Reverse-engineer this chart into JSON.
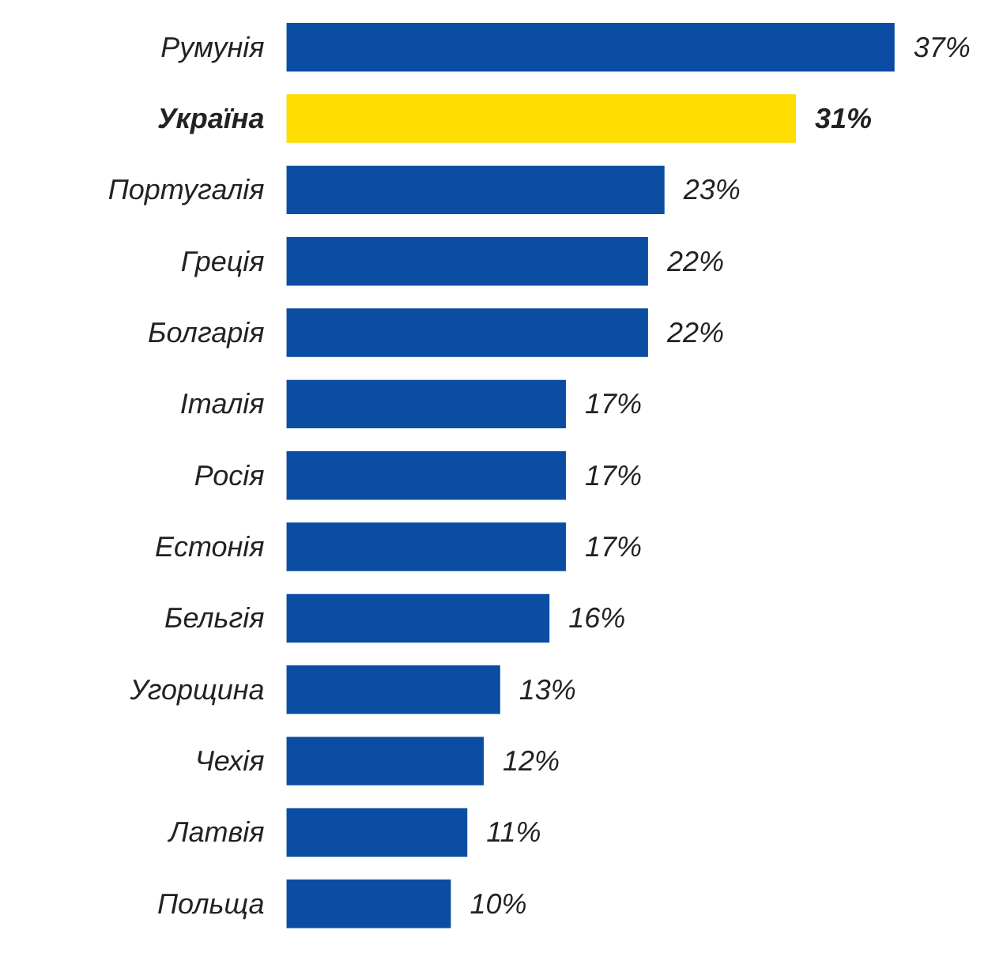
{
  "chart_data": {
    "type": "bar",
    "orientation": "horizontal",
    "categories": [
      "Румунія",
      "Україна",
      "Португалія",
      "Греція",
      "Болгарія",
      "Італія",
      "Росія",
      "Естонія",
      "Бельгія",
      "Угорщина",
      "Чехія",
      "Латвія",
      "Польща"
    ],
    "values": [
      37,
      31,
      23,
      22,
      22,
      17,
      17,
      17,
      16,
      13,
      12,
      11,
      10
    ],
    "colors": [
      "#0a4da2",
      "#ffdd00",
      "#0a4da2",
      "#0a4da2",
      "#0a4da2",
      "#0a4da2",
      "#0a4da2",
      "#0a4da2",
      "#0a4da2",
      "#0a4da2",
      "#0a4da2",
      "#0a4da2",
      "#0a4da2"
    ],
    "value_labels": [
      "37%",
      "31%",
      "23%",
      "22%",
      "22%",
      "17%",
      "17%",
      "17%",
      "16%",
      "13%",
      "12%",
      "11%",
      "10%"
    ]
  }
}
